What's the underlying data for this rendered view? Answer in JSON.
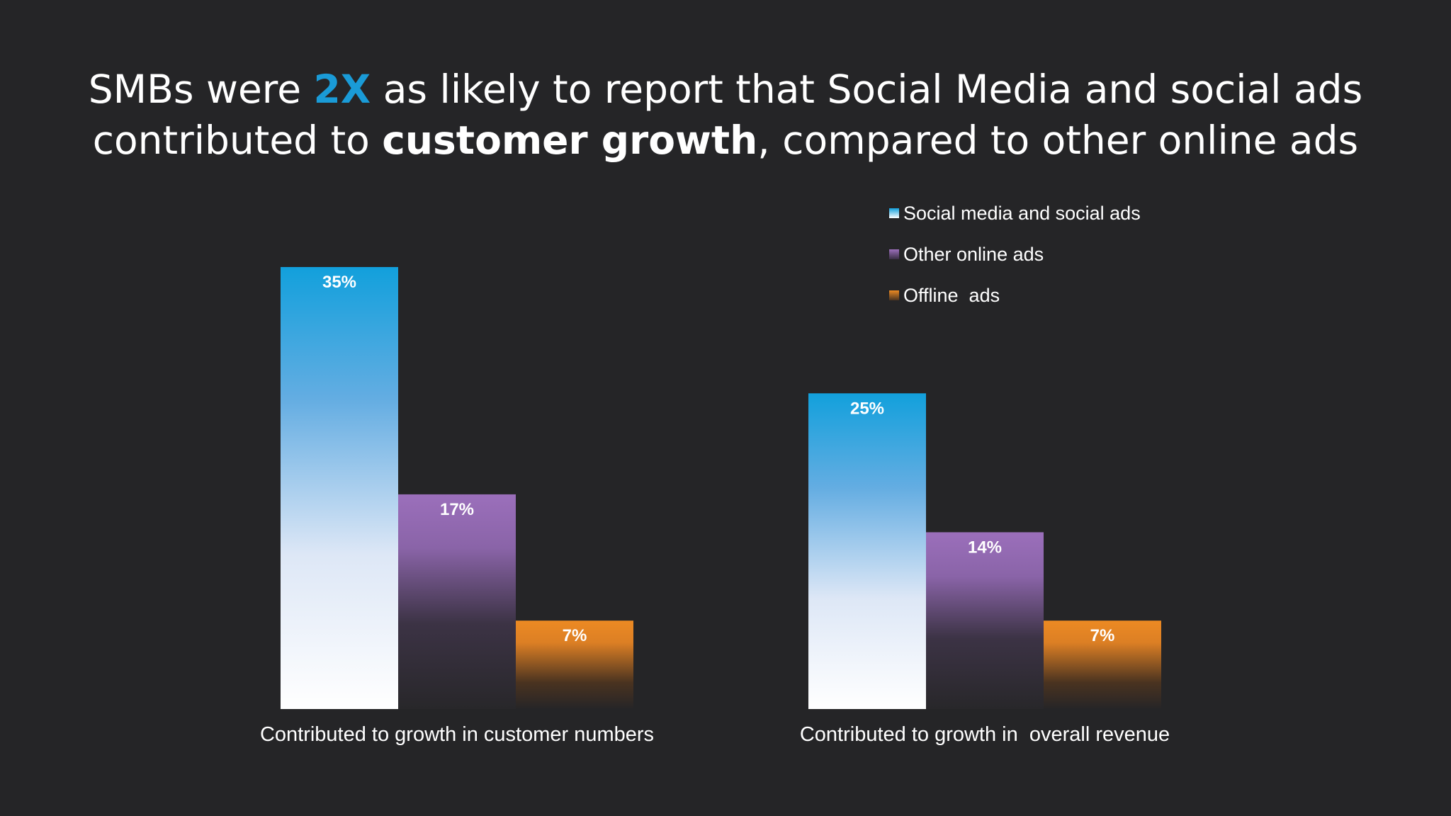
{
  "headline": {
    "line1_pre": "SMBs were ",
    "line1_highlight": "2X",
    "line1_post": " as likely to report that Social Media and social ads",
    "line2_pre": "contributed to ",
    "line2_bold": "customer growth",
    "line2_post": ", compared to other online ads"
  },
  "colors": {
    "background": "#252527",
    "accent": "#1a9bd7",
    "social": "#12a0dc",
    "other": "#9b6fbb",
    "offline": "#ec8a23"
  },
  "chart_data": {
    "type": "bar",
    "categories": [
      "Contributed to growth in customer numbers",
      "Contributed to growth in  overall revenue"
    ],
    "series": [
      {
        "name": "Social media and social ads",
        "values": [
          35,
          25
        ],
        "labels": [
          "35%",
          "25%"
        ],
        "color": "#12a0dc"
      },
      {
        "name": "Other online ads",
        "values": [
          17,
          14
        ],
        "labels": [
          "17%",
          "14%"
        ],
        "color": "#9b6fbb"
      },
      {
        "name": "Offline  ads",
        "values": [
          7,
          7
        ],
        "labels": [
          "7%",
          "7%"
        ],
        "color": "#ec8a23"
      }
    ],
    "ylim": [
      0,
      35
    ],
    "grid": false,
    "legend": "top-right"
  }
}
